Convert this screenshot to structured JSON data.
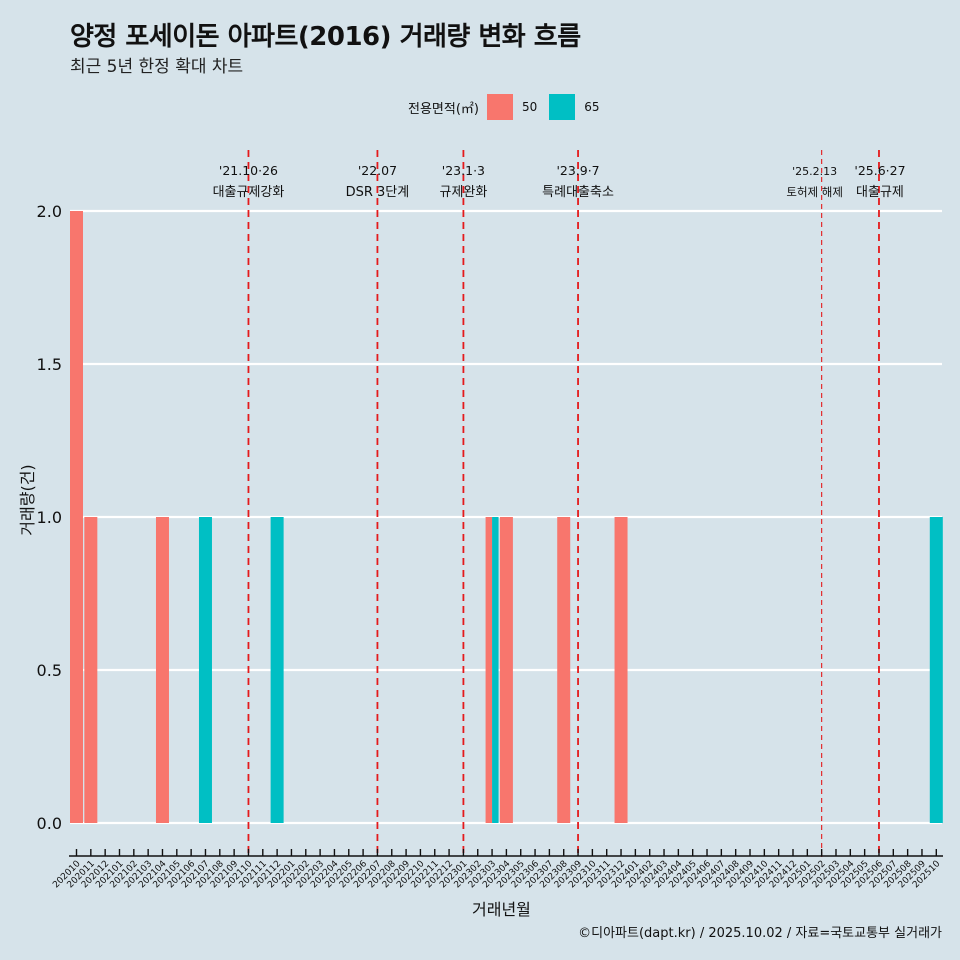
{
  "title": "양정 포세이돈 아파트(2016) 거래량 변화 흐름",
  "subtitle": "최근 5년 한정 확대 차트",
  "legend": {
    "title": "전용면적(㎡)",
    "items": [
      {
        "label": "50",
        "color": "#f8766d"
      },
      {
        "label": "65",
        "color": "#00bfc4"
      }
    ]
  },
  "caption": "©디아파트(dapt.kr) / 2025.10.02 / 자료=국토교통부 실거래가",
  "chart_data": {
    "type": "bar",
    "xlabel": "거래년월",
    "ylabel": "거래량(건)",
    "ylim": [
      0,
      2
    ],
    "yticks": [
      "0.0",
      "0.5",
      "1.0",
      "1.5",
      "2.0"
    ],
    "ytick_values": [
      0,
      0.5,
      1.0,
      1.5,
      2.0
    ],
    "grid": true,
    "legend_position": "top",
    "categories": [
      "202010",
      "202011",
      "202012",
      "202101",
      "202102",
      "202103",
      "202104",
      "202105",
      "202106",
      "202107",
      "202108",
      "202109",
      "202110",
      "202111",
      "202112",
      "202201",
      "202202",
      "202203",
      "202204",
      "202205",
      "202206",
      "202207",
      "202208",
      "202209",
      "202210",
      "202211",
      "202212",
      "202301",
      "202302",
      "202303",
      "202304",
      "202305",
      "202306",
      "202307",
      "202308",
      "202309",
      "202310",
      "202311",
      "202312",
      "202401",
      "202402",
      "202403",
      "202404",
      "202405",
      "202406",
      "202407",
      "202408",
      "202409",
      "202410",
      "202411",
      "202412",
      "202501",
      "202502",
      "202503",
      "202504",
      "202505",
      "202506",
      "202507",
      "202508",
      "202509",
      "202510"
    ],
    "series": [
      {
        "name": "50",
        "color": "#f8766d",
        "points": [
          {
            "x": "202010",
            "y": 2
          },
          {
            "x": "202011",
            "y": 1
          },
          {
            "x": "202104",
            "y": 1
          },
          {
            "x": "202303",
            "y": 1
          },
          {
            "x": "202304",
            "y": 1
          },
          {
            "x": "202308",
            "y": 1
          },
          {
            "x": "202312",
            "y": 1
          }
        ]
      },
      {
        "name": "65",
        "color": "#00bfc4",
        "points": [
          {
            "x": "202107",
            "y": 1
          },
          {
            "x": "202112",
            "y": 1
          },
          {
            "x": "202303",
            "y": 1
          },
          {
            "x": "202510",
            "y": 1
          }
        ]
      }
    ],
    "annotations": [
      {
        "x": "202110",
        "date": "'21.10·26",
        "label": "대출규제강화",
        "style": "thick"
      },
      {
        "x": "202207",
        "date": "'22.07",
        "label": "DSR 3단계",
        "style": "thick"
      },
      {
        "x": "202301",
        "date": "'23.1·3",
        "label": "규제완화",
        "style": "thick"
      },
      {
        "x": "202309",
        "date": "'23.9·7",
        "label": "특례대출축소",
        "style": "thick"
      },
      {
        "x": "202502",
        "date": "'25.2.13",
        "label": "토허제 해제",
        "style": "thin"
      },
      {
        "x": "202506",
        "date": "'25.6·27",
        "label": "대출규제",
        "style": "thick"
      }
    ],
    "annotation_color": "#e41a1c"
  }
}
